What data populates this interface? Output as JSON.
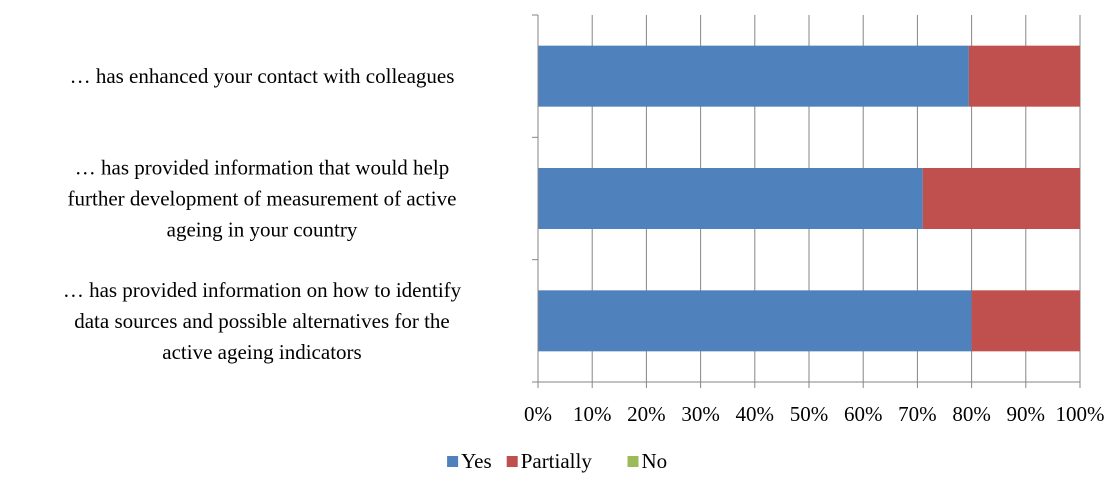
{
  "chart_data": {
    "type": "bar",
    "orientation": "horizontal",
    "stacked": "percent",
    "categories": [
      "… has enhanced your contact with colleagues",
      "… has provided information that would help further development of measurement of active ageing in your country",
      "… has provided information on how to identify data sources and possible alternatives for the active ageing indicators"
    ],
    "category_lines": [
      [
        "… has enhanced your contact with colleagues"
      ],
      [
        "… has provided information that would help",
        "further development of measurement of active",
        "ageing in your country"
      ],
      [
        "… has provided information on how to identify",
        "data sources and possible alternatives for the",
        "active ageing indicators"
      ]
    ],
    "series": [
      {
        "name": "Yes",
        "color": "#4F81BD",
        "values": [
          79.5,
          71,
          80
        ]
      },
      {
        "name": "Partially",
        "color": "#C0504D",
        "values": [
          20.5,
          29,
          20
        ]
      },
      {
        "name": "No",
        "color": "#9BBB59",
        "values": [
          0,
          0,
          0
        ]
      }
    ],
    "x_ticks": [
      "0%",
      "10%",
      "20%",
      "30%",
      "40%",
      "50%",
      "60%",
      "70%",
      "80%",
      "90%",
      "100%"
    ],
    "xlim": [
      0,
      100
    ],
    "grid": true,
    "legend_position": "bottom",
    "title": "",
    "xlabel": "",
    "ylabel": ""
  }
}
